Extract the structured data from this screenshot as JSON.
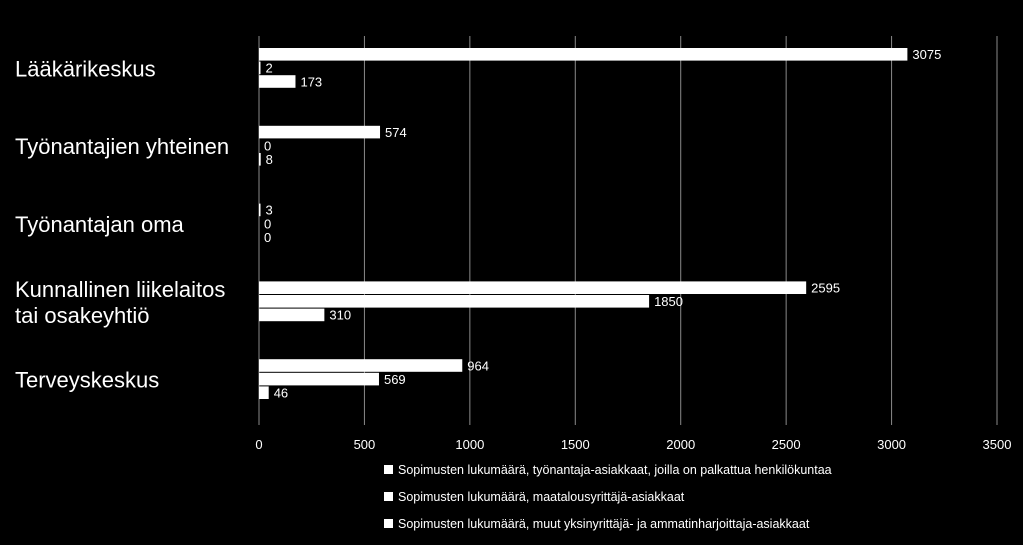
{
  "chart_data": {
    "type": "bar",
    "orientation": "horizontal",
    "title": "",
    "xlabel": "",
    "ylabel": "",
    "xlim": [
      0,
      3500
    ],
    "xticks": [
      0,
      500,
      1000,
      1500,
      2000,
      2500,
      3000,
      3500
    ],
    "grid": true,
    "legend_position": "bottom",
    "bar_color": "#ffffff",
    "background": "#000000",
    "categories": [
      [
        "Lääkärikeskus"
      ],
      [
        "Työnantajien yhteinen"
      ],
      [
        "Työnantajan oma"
      ],
      [
        "Kunnallinen liikelaitos",
        "tai osakeyhtiö"
      ],
      [
        "Terveyskeskus"
      ]
    ],
    "series": [
      {
        "name": "Sopimusten lukumäärä, työnantaja-asiakkaat, joilla on palkattua henkilökuntaa",
        "values": [
          3075,
          574,
          3,
          2595,
          964
        ]
      },
      {
        "name": "Sopimusten lukumäärä, maatalousyrittäjä-asiakkaat",
        "values": [
          2,
          0,
          0,
          1850,
          569
        ]
      },
      {
        "name": "Sopimusten lukumäärä, muut yksinyrittäjä- ja ammatinharjoittaja-asiakkaat",
        "values": [
          173,
          8,
          0,
          310,
          46
        ]
      }
    ]
  }
}
